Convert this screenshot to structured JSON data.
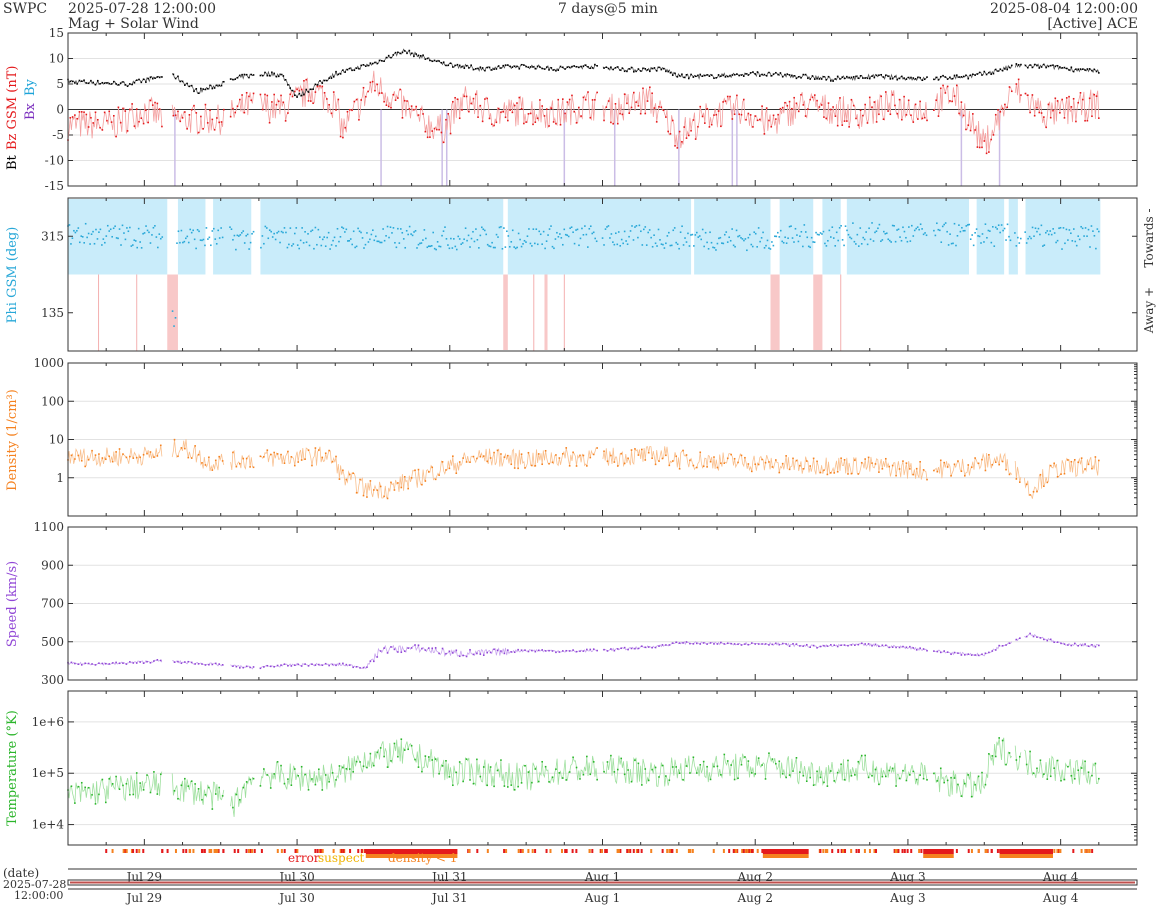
{
  "header": {
    "brand": "SWPC",
    "start_time": "2025-07-28 12:00:00",
    "product": "Mag + Solar Wind",
    "span": "7 days@5 min",
    "end_time": "2025-08-04 12:00:00",
    "source": "[Active] ACE"
  },
  "footer": {
    "date_label": "(date)",
    "date_value": "2025-07-28",
    "time_value": "12:00:00"
  },
  "colors": {
    "bt": "#000000",
    "bz": "#e41a1c",
    "bx": "#7b2fbe",
    "by": "#1ca3d8",
    "phi": "#29a8d8",
    "towards_fill": "#c9ecfa",
    "away_fill": "#f8c8c8",
    "density": "#f58220",
    "speed": "#9147d6",
    "temperature": "#2bb52b",
    "error": "#e41a1c",
    "suspect": "#f0b400",
    "density_lt1": "#f58220"
  },
  "chart_data": [
    {
      "id": "mag",
      "type": "line",
      "ylabel_parts": [
        "Bt",
        "Bz GSM (nT)",
        "Bx",
        "By"
      ],
      "ylim": [
        -15,
        15
      ],
      "yticks": [
        -15,
        -10,
        -5,
        0,
        5,
        10,
        15
      ],
      "grid": true,
      "series": [
        {
          "name": "Bt",
          "x_days": [
            0,
            0.4,
            0.65,
            0.7,
            0.85,
            1.15,
            1.3,
            1.4,
            1.5,
            1.75,
            2.0,
            2.2,
            2.45,
            2.7,
            3.0,
            3.2,
            3.4,
            3.7,
            3.9,
            4.0,
            4.2,
            4.5,
            4.8,
            5.0,
            5.3,
            5.6,
            5.9,
            6.0,
            6.2,
            6.4,
            6.7
          ],
          "values": [
            5.5,
            5.0,
            6.8,
            6.5,
            3.5,
            6.5,
            7.0,
            6.8,
            2.5,
            7.0,
            9.0,
            11.5,
            9.0,
            8.0,
            8.5,
            8.0,
            8.5,
            7.8,
            8.0,
            6.5,
            6.5,
            7.0,
            6.5,
            6.0,
            6.5,
            6.0,
            6.5,
            7.0,
            8.5,
            8.5,
            7.5
          ]
        },
        {
          "name": "Bz",
          "x_days": [
            0,
            0.3,
            0.5,
            0.65,
            0.8,
            1.0,
            1.2,
            1.4,
            1.6,
            1.75,
            1.8,
            2.0,
            2.1,
            2.3,
            2.45,
            2.6,
            2.8,
            3.0,
            3.2,
            3.4,
            3.6,
            3.8,
            4.0,
            4.2,
            4.4,
            4.6,
            4.8,
            5.0,
            5.2,
            5.4,
            5.6,
            5.8,
            6.0,
            6.2,
            6.4,
            6.6,
            6.7
          ],
          "values": [
            -3,
            -3,
            0,
            -2,
            -2,
            -2,
            1,
            0,
            4,
            1,
            -4,
            5,
            3,
            -2,
            -4,
            2,
            -1,
            0,
            -1,
            1,
            0,
            2,
            -5,
            -1,
            0,
            -3,
            1,
            0,
            -1,
            1,
            0,
            3,
            -7,
            4,
            -1,
            0,
            1
          ]
        }
      ]
    },
    {
      "id": "phi",
      "type": "scatter",
      "ylabel": "Phi GSM (deg)",
      "ylim": [
        45,
        405
      ],
      "yticks": [
        135,
        315
      ],
      "side_labels": [
        "Towards -",
        "Away +"
      ],
      "x_days": [
        0,
        0.5,
        1.0,
        1.5,
        2.0,
        2.5,
        3.0,
        3.5,
        4.0,
        4.5,
        5.0,
        5.5,
        6.0,
        6.5,
        6.7
      ],
      "values": [
        320,
        315,
        310,
        312,
        312,
        310,
        312,
        315,
        312,
        308,
        318,
        320,
        318,
        312,
        312
      ]
    },
    {
      "id": "density",
      "type": "line",
      "ylabel": "Density (1/cm³)",
      "scale": "log",
      "ylim": [
        0.1,
        1000
      ],
      "ytick_labels": [
        "1",
        "10",
        "100",
        "1000"
      ],
      "x_days": [
        0,
        0.3,
        0.6,
        0.75,
        0.9,
        1.2,
        1.5,
        1.7,
        1.8,
        1.95,
        2.1,
        2.3,
        2.5,
        2.7,
        3.0,
        3.3,
        3.6,
        3.9,
        4.0,
        4.2,
        4.5,
        4.8,
        5.0,
        5.3,
        5.6,
        5.9,
        6.1,
        6.3,
        6.5,
        6.7
      ],
      "values": [
        3.5,
        3.5,
        4.0,
        6.5,
        2.5,
        3.0,
        3.5,
        3.8,
        1.0,
        0.5,
        0.5,
        1.0,
        2.0,
        3.5,
        3.0,
        3.5,
        3.5,
        4.0,
        3.0,
        2.8,
        2.5,
        2.0,
        2.2,
        2.0,
        1.5,
        2.0,
        3.0,
        0.4,
        1.8,
        2.0
      ]
    },
    {
      "id": "speed",
      "type": "line",
      "ylabel": "Speed (km/s)",
      "ylim": [
        300,
        1100
      ],
      "yticks": [
        300,
        500,
        700,
        900,
        1100
      ],
      "x_days": [
        0,
        0.3,
        0.6,
        0.9,
        1.2,
        1.5,
        1.8,
        1.95,
        2.05,
        2.3,
        2.5,
        2.7,
        3.0,
        3.3,
        3.6,
        3.9,
        4.0,
        4.3,
        4.6,
        4.9,
        5.2,
        5.5,
        5.8,
        6.0,
        6.1,
        6.3,
        6.5,
        6.7
      ],
      "values": [
        385,
        385,
        400,
        385,
        365,
        380,
        380,
        365,
        460,
        465,
        440,
        440,
        455,
        450,
        460,
        480,
        495,
        490,
        490,
        475,
        485,
        470,
        440,
        430,
        475,
        540,
        490,
        480
      ]
    },
    {
      "id": "temperature",
      "type": "line",
      "ylabel": "Temperature (°K)",
      "scale": "log",
      "ylim": [
        4000,
        4000000
      ],
      "ytick_labels": [
        "1e+4",
        "1e+5",
        "1e+6"
      ],
      "x_days": [
        0,
        0.3,
        0.6,
        0.9,
        1.1,
        1.25,
        1.5,
        1.8,
        1.95,
        2.2,
        2.5,
        2.7,
        3.0,
        3.3,
        3.6,
        3.9,
        4.0,
        4.3,
        4.6,
        4.9,
        5.2,
        5.5,
        5.8,
        6.0,
        6.1,
        6.3,
        6.5,
        6.7
      ],
      "values": [
        35000,
        50000,
        60000,
        40000,
        25000,
        100000,
        80000,
        90000,
        200000,
        250000,
        100000,
        110000,
        80000,
        120000,
        120000,
        100000,
        120000,
        130000,
        140000,
        100000,
        120000,
        100000,
        60000,
        55000,
        300000,
        150000,
        120000,
        100000
      ]
    }
  ],
  "flags_legend": [
    "error",
    "suspect",
    "density < 1"
  ],
  "xaxis": {
    "tick_labels": [
      "Jul 29",
      "Jul 30",
      "Jul 31",
      "Aug 1",
      "Aug 2",
      "Aug 3",
      "Aug 4"
    ],
    "day_offsets": [
      0.5,
      1.5,
      2.5,
      3.5,
      4.5,
      5.5,
      6.5
    ]
  }
}
